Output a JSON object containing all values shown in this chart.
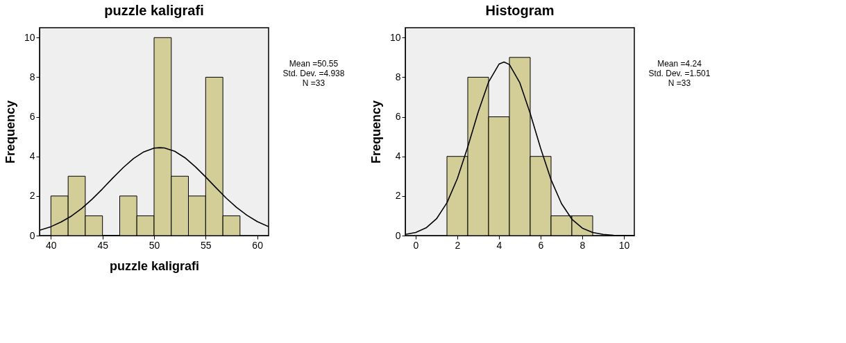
{
  "chart_data": [
    {
      "type": "histogram",
      "title": "puzzle kaligrafi",
      "xlabel": "puzzle kaligrafi",
      "ylabel": "Frequency",
      "color": "#d3ce97",
      "bins": [
        40,
        41.67,
        43.33,
        45,
        46.67,
        48.33,
        50,
        51.67,
        53.33,
        55,
        56.67,
        58.33
      ],
      "values": [
        2,
        3,
        1,
        0,
        2,
        1,
        10,
        3,
        2,
        8,
        1
      ],
      "series": [
        {
          "type": "line",
          "color": "#000000",
          "x": [
            38.9,
            40,
            41,
            42,
            43,
            44,
            45,
            46,
            47,
            48,
            49,
            50,
            50.55,
            51,
            52,
            53,
            54,
            55,
            56,
            57,
            58,
            59,
            60,
            61.1
          ],
          "values": [
            0.27,
            0.45,
            0.69,
            0.99,
            1.38,
            1.84,
            2.36,
            2.91,
            3.43,
            3.89,
            4.23,
            4.42,
            4.44,
            4.43,
            4.26,
            3.93,
            3.48,
            2.96,
            2.42,
            1.89,
            1.42,
            1.03,
            0.71,
            0.45
          ]
        }
      ],
      "xlim": [
        38.9,
        61.1
      ],
      "xticks": [
        40,
        45,
        50,
        55,
        60
      ],
      "ylim": [
        0,
        10.5
      ],
      "yticks": [
        0,
        2,
        4,
        6,
        8,
        10
      ],
      "grid": false,
      "annotations": [
        "Mean =50.55",
        "Std. Dev. =4.938",
        "N =33"
      ]
    },
    {
      "type": "histogram",
      "title": "Histogram",
      "ylabel": "Frequency",
      "color": "#d3ce97",
      "bins": [
        1.5,
        2.5,
        3.5,
        4.5,
        5.5,
        6.5,
        7.5,
        8.5
      ],
      "values": [
        4,
        8,
        6,
        9,
        4,
        1,
        1
      ],
      "series": [
        {
          "type": "line",
          "color": "#000000",
          "x": [
            -0.5,
            0,
            0.5,
            1,
            1.5,
            2,
            2.5,
            3,
            3.5,
            4,
            4.24,
            4.5,
            5,
            5.5,
            6,
            6.5,
            7,
            7.5,
            8,
            8.5,
            9,
            9.5,
            10,
            10.5
          ],
          "values": [
            0.06,
            0.16,
            0.39,
            0.85,
            1.66,
            2.88,
            4.48,
            6.24,
            7.76,
            8.66,
            8.77,
            8.64,
            7.72,
            6.17,
            4.41,
            2.82,
            1.62,
            0.83,
            0.38,
            0.16,
            0.06,
            0.02,
            0.01,
            0
          ]
        }
      ],
      "xlim": [
        -0.5,
        10.5
      ],
      "xticks": [
        0,
        2,
        4,
        6,
        8,
        10
      ],
      "ylim": [
        0,
        10.5
      ],
      "yticks": [
        0,
        2,
        4,
        6,
        8,
        10
      ],
      "grid": false,
      "annotations": [
        "Mean =4.24",
        "Std. Dev. =1.501",
        "N =33"
      ]
    }
  ]
}
